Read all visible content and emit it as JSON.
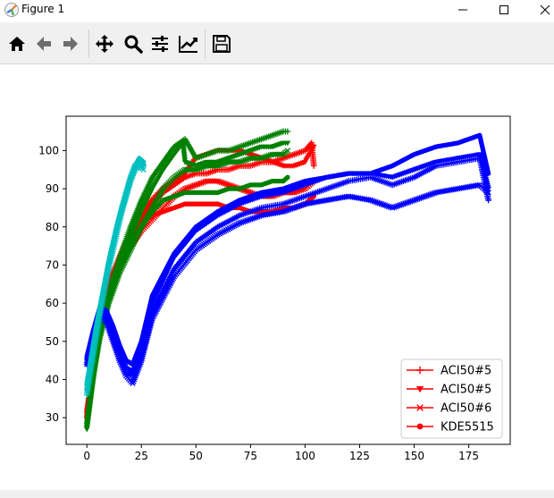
{
  "window": {
    "title": "Figure 1"
  },
  "toolbar": {
    "buttons": [
      {
        "name": "home",
        "icon": "home-icon"
      },
      {
        "name": "back",
        "icon": "arrow-left-icon"
      },
      {
        "name": "forward",
        "icon": "arrow-right-icon"
      },
      {
        "name": "pan",
        "icon": "move-icon"
      },
      {
        "name": "zoom",
        "icon": "magnifier-icon"
      },
      {
        "name": "configure-subplots",
        "icon": "sliders-icon"
      },
      {
        "name": "edit-axis",
        "icon": "line-chart-icon"
      },
      {
        "name": "save",
        "icon": "floppy-disk-icon"
      }
    ]
  },
  "chart_data": {
    "type": "line",
    "title": "",
    "xlabel": "",
    "ylabel": "",
    "xlim": [
      -9.5,
      194
    ],
    "ylim": [
      23,
      109
    ],
    "xticks": [
      0,
      25,
      50,
      75,
      100,
      125,
      150,
      175
    ],
    "yticks": [
      30,
      40,
      50,
      60,
      70,
      80,
      90,
      100
    ],
    "legend": {
      "position": "lower-right",
      "entries": [
        {
          "label": "ACI50#5",
          "color": "#ff0000",
          "marker": "plus"
        },
        {
          "label": "ACI50#5",
          "color": "#ff0000",
          "marker": "triangle-down"
        },
        {
          "label": "ACI50#6",
          "color": "#ff0000",
          "marker": "x"
        },
        {
          "label": "KDE5515",
          "color": "#ff0000",
          "marker": "circle"
        }
      ]
    },
    "series": [
      {
        "color": "#ff0000",
        "marker": "plus",
        "x": [
          0,
          3,
          6,
          10,
          15,
          20,
          25,
          30,
          35,
          40,
          45,
          50,
          55,
          60,
          65,
          70,
          75,
          80,
          85,
          90,
          95,
          100,
          103,
          104
        ],
        "y": [
          30,
          44,
          55,
          64,
          72,
          78,
          82,
          86,
          89,
          91,
          93,
          94,
          94,
          95,
          95,
          96,
          96,
          97,
          97,
          98,
          99,
          100,
          102,
          96
        ]
      },
      {
        "color": "#ff0000",
        "marker": "triangle-down",
        "x": [
          0,
          3,
          6,
          10,
          15,
          20,
          25,
          30,
          35,
          40,
          45,
          50,
          55,
          60,
          65,
          70,
          75,
          80,
          85,
          90,
          95,
          100,
          104
        ],
        "y": [
          31,
          45,
          56,
          65,
          72,
          78,
          83,
          87,
          90,
          92,
          94,
          98,
          99,
          100,
          100,
          100,
          99,
          98,
          97,
          96,
          96,
          97,
          101
        ]
      },
      {
        "color": "#ff0000",
        "marker": "x",
        "x": [
          0,
          3,
          6,
          10,
          15,
          20,
          25,
          30,
          35,
          40,
          45,
          50,
          55,
          60,
          65,
          70,
          75,
          80,
          85,
          90,
          95,
          100,
          104
        ],
        "y": [
          31,
          43,
          53,
          62,
          70,
          75,
          79,
          82,
          85,
          88,
          90,
          91,
          92,
          92,
          91,
          90,
          89,
          88,
          88,
          89,
          89,
          90,
          92
        ]
      },
      {
        "color": "#ff0000",
        "marker": "circle",
        "x": [
          0,
          3,
          6,
          10,
          15,
          20,
          25,
          30,
          35,
          40,
          45,
          50,
          55,
          60,
          65,
          70,
          75,
          80,
          85,
          90,
          95,
          100,
          104
        ],
        "y": [
          32,
          44,
          54,
          63,
          71,
          77,
          81,
          83,
          84,
          85,
          86,
          86,
          86,
          86,
          85,
          85,
          84,
          84,
          84,
          85,
          85,
          86,
          88
        ]
      },
      {
        "color": "#008000",
        "marker": "plus",
        "x": [
          0,
          3,
          6,
          10,
          15,
          20,
          25,
          30,
          35,
          40,
          45,
          50,
          55,
          60,
          65,
          70,
          75,
          80,
          85,
          90,
          92
        ],
        "y": [
          28,
          42,
          53,
          63,
          72,
          80,
          87,
          93,
          97,
          101,
          103,
          98,
          99,
          100,
          100,
          101,
          102,
          103,
          104,
          105,
          105
        ]
      },
      {
        "color": "#008000",
        "marker": "triangle-down",
        "x": [
          0,
          3,
          6,
          10,
          15,
          20,
          25,
          30,
          35,
          40,
          44,
          45,
          50,
          55,
          60,
          65,
          70,
          75,
          80,
          85,
          90,
          92
        ],
        "y": [
          27,
          40,
          52,
          62,
          70,
          77,
          84,
          90,
          95,
          99,
          102,
          97,
          96,
          97,
          97,
          98,
          99,
          100,
          101,
          101,
          102,
          102
        ]
      },
      {
        "color": "#008000",
        "marker": "x",
        "x": [
          0,
          3,
          6,
          10,
          15,
          20,
          25,
          30,
          35,
          40,
          45,
          50,
          55,
          60,
          65,
          70,
          75,
          80,
          85,
          90,
          92
        ],
        "y": [
          28,
          41,
          51,
          60,
          68,
          74,
          80,
          85,
          90,
          93,
          95,
          95,
          96,
          96,
          97,
          97,
          98,
          98,
          99,
          99,
          100
        ]
      },
      {
        "color": "#008000",
        "marker": "circle",
        "x": [
          0,
          3,
          6,
          10,
          15,
          20,
          25,
          30,
          35,
          40,
          45,
          50,
          55,
          60,
          65,
          70,
          75,
          80,
          85,
          90,
          92
        ],
        "y": [
          29,
          42,
          52,
          61,
          69,
          75,
          80,
          84,
          87,
          88,
          89,
          89,
          89,
          89,
          90,
          90,
          91,
          91,
          92,
          92,
          93
        ]
      },
      {
        "color": "#0000ff",
        "marker": "plus",
        "x": [
          0,
          3,
          6,
          9,
          12,
          15,
          18,
          21,
          25,
          30,
          40,
          50,
          60,
          70,
          80,
          90,
          100,
          110,
          120,
          130,
          140,
          150,
          160,
          170,
          180,
          184
        ],
        "y": [
          44,
          52,
          58,
          56,
          51,
          46,
          42,
          41,
          47,
          58,
          69,
          76,
          80,
          83,
          85,
          86,
          88,
          90,
          92,
          93,
          91,
          93,
          96,
          97,
          98,
          87
        ]
      },
      {
        "color": "#0000ff",
        "marker": "triangle-down",
        "x": [
          0,
          3,
          6,
          9,
          12,
          15,
          18,
          21,
          25,
          30,
          40,
          50,
          60,
          70,
          80,
          90,
          100,
          110,
          120,
          130,
          140,
          150,
          160,
          170,
          180,
          184
        ],
        "y": [
          45,
          52,
          58,
          57,
          52,
          47,
          43,
          42,
          48,
          60,
          72,
          79,
          83,
          86,
          88,
          89,
          91,
          93,
          94,
          94,
          93,
          95,
          97,
          98,
          99,
          90
        ]
      },
      {
        "color": "#0000ff",
        "marker": "x",
        "x": [
          0,
          3,
          6,
          9,
          12,
          15,
          18,
          21,
          25,
          30,
          40,
          50,
          60,
          70,
          80,
          90,
          100,
          110,
          120,
          130,
          140,
          150,
          160,
          170,
          180,
          184
        ],
        "y": [
          44,
          51,
          57,
          55,
          50,
          45,
          41,
          39,
          45,
          56,
          67,
          74,
          78,
          81,
          83,
          84,
          86,
          87,
          88,
          87,
          85,
          87,
          89,
          90,
          91,
          89
        ]
      },
      {
        "color": "#0000ff",
        "marker": "circle",
        "x": [
          0,
          3,
          6,
          9,
          12,
          15,
          18,
          21,
          25,
          30,
          40,
          50,
          60,
          70,
          80,
          90,
          100,
          110,
          120,
          130,
          140,
          150,
          160,
          170,
          180,
          184
        ],
        "y": [
          46,
          53,
          59,
          58,
          54,
          49,
          45,
          44,
          50,
          62,
          73,
          80,
          84,
          87,
          89,
          90,
          92,
          93,
          94,
          94,
          96,
          99,
          101,
          102,
          104,
          94
        ]
      },
      {
        "color": "#00bfbf",
        "marker": "plus",
        "x": [
          0,
          2,
          4,
          6,
          8,
          10,
          12,
          14,
          16,
          18,
          20,
          22,
          24,
          26
        ],
        "y": [
          36,
          43,
          50,
          57,
          63,
          69,
          74,
          79,
          84,
          88,
          92,
          95,
          97,
          96
        ]
      },
      {
        "color": "#00bfbf",
        "marker": "triangle-down",
        "x": [
          0,
          2,
          4,
          6,
          8,
          10,
          12,
          14,
          16,
          18,
          20,
          22,
          24,
          26
        ],
        "y": [
          37,
          44,
          51,
          58,
          64,
          70,
          75,
          80,
          85,
          89,
          93,
          96,
          97,
          96
        ]
      },
      {
        "color": "#00bfbf",
        "marker": "x",
        "x": [
          0,
          2,
          4,
          6,
          8,
          10,
          12,
          14,
          16,
          18,
          20,
          22,
          24,
          26
        ],
        "y": [
          38,
          45,
          52,
          58,
          64,
          70,
          75,
          80,
          84,
          88,
          92,
          95,
          96,
          95
        ]
      },
      {
        "color": "#00bfbf",
        "marker": "circle",
        "x": [
          0,
          2,
          4,
          6,
          8,
          10,
          12,
          14,
          16,
          18,
          20,
          22,
          24,
          26
        ],
        "y": [
          39,
          46,
          53,
          59,
          65,
          71,
          76,
          81,
          85,
          89,
          93,
          96,
          98,
          97
        ]
      }
    ]
  }
}
